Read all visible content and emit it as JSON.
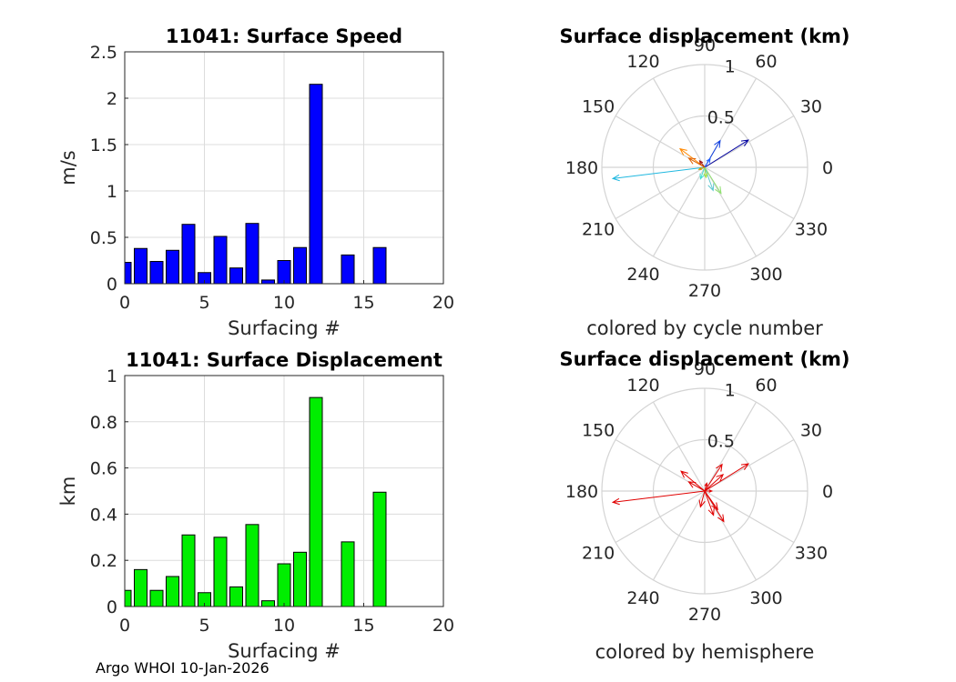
{
  "chart_data": [
    {
      "type": "bar",
      "title": "11041: Surface Speed",
      "xlabel": "Surfacing #",
      "ylabel": "m/s",
      "xlim": [
        0,
        20
      ],
      "ylim": [
        0,
        2.5
      ],
      "xticks": [
        "0",
        "5",
        "10",
        "15",
        "20"
      ],
      "yticks": [
        "0",
        "0.5",
        "1",
        "1.5",
        "2",
        "2.5"
      ],
      "grid": true,
      "bar_color": "#0000ff",
      "x": [
        0,
        1,
        2,
        3,
        4,
        5,
        6,
        7,
        8,
        9,
        10,
        11,
        12,
        14,
        16
      ],
      "values": [
        0.23,
        0.38,
        0.24,
        0.36,
        0.64,
        0.12,
        0.51,
        0.17,
        0.65,
        0.04,
        0.25,
        0.39,
        2.15,
        0.31,
        0.39
      ]
    },
    {
      "type": "bar",
      "title": "11041: Surface Displacement",
      "xlabel": "Surfacing #",
      "ylabel": "km",
      "xlim": [
        0,
        20
      ],
      "ylim": [
        0,
        1
      ],
      "xticks": [
        "0",
        "5",
        "10",
        "15",
        "20"
      ],
      "yticks": [
        "0",
        "0.2",
        "0.4",
        "0.6",
        "0.8",
        "1"
      ],
      "grid": true,
      "bar_color": "#00ee00",
      "x": [
        0,
        1,
        2,
        3,
        4,
        5,
        6,
        7,
        8,
        9,
        10,
        11,
        12,
        14,
        16
      ],
      "values": [
        0.07,
        0.16,
        0.07,
        0.13,
        0.31,
        0.06,
        0.3,
        0.085,
        0.355,
        0.025,
        0.185,
        0.235,
        0.905,
        0.28,
        0.495
      ]
    },
    {
      "type": "polar-vectors",
      "title": "Surface displacement (km)",
      "subtitle": "colored by cycle number",
      "rlim": [
        0,
        1
      ],
      "rticks": [
        "0.5",
        "1"
      ],
      "angle_ticks": [
        "90",
        "60",
        "30",
        "0",
        "330",
        "300",
        "270",
        "240",
        "210",
        "180",
        "150",
        "120"
      ],
      "vectors": [
        {
          "angle_deg": 32,
          "r": 0.5,
          "color": "#0000a0"
        },
        {
          "angle_deg": 60,
          "r": 0.3,
          "color": "#1040e0"
        },
        {
          "angle_deg": 58,
          "r": 0.1,
          "color": "#2060ff"
        },
        {
          "angle_deg": 187,
          "r": 0.9,
          "color": "#20b8e0"
        },
        {
          "angle_deg": 302,
          "r": 0.3,
          "color": "#90e070"
        },
        {
          "angle_deg": 290,
          "r": 0.24,
          "color": "#60c8d0"
        },
        {
          "angle_deg": 250,
          "r": 0.12,
          "color": "#40e0d0"
        },
        {
          "angle_deg": 143,
          "r": 0.3,
          "color": "#ff8800"
        },
        {
          "angle_deg": 150,
          "r": 0.18,
          "color": "#e06000"
        },
        {
          "angle_deg": 128,
          "r": 0.08,
          "color": "#a01010"
        },
        {
          "angle_deg": 200,
          "r": 0.06,
          "color": "#d0a000"
        },
        {
          "angle_deg": 278,
          "r": 0.1,
          "color": "#a0e040"
        }
      ]
    },
    {
      "type": "polar-vectors",
      "title": "Surface displacement (km)",
      "subtitle": "colored by hemisphere",
      "rlim": [
        0,
        1
      ],
      "rticks": [
        "0.5",
        "1"
      ],
      "angle_ticks": [
        "90",
        "60",
        "30",
        "0",
        "330",
        "300",
        "270",
        "240",
        "210",
        "180",
        "150",
        "120"
      ],
      "vectors": [
        {
          "angle_deg": 187,
          "r": 0.9,
          "color": "#e00000"
        },
        {
          "angle_deg": 32,
          "r": 0.5,
          "color": "#e00000"
        },
        {
          "angle_deg": 57,
          "r": 0.31,
          "color": "#e00000"
        },
        {
          "angle_deg": 42,
          "r": 0.24,
          "color": "#e00000"
        },
        {
          "angle_deg": 140,
          "r": 0.3,
          "color": "#e00000"
        },
        {
          "angle_deg": 150,
          "r": 0.18,
          "color": "#e00000"
        },
        {
          "angle_deg": 302,
          "r": 0.35,
          "color": "#e00000"
        },
        {
          "angle_deg": 305,
          "r": 0.22,
          "color": "#e00000"
        },
        {
          "angle_deg": 290,
          "r": 0.25,
          "color": "#e00000"
        },
        {
          "angle_deg": 255,
          "r": 0.16,
          "color": "#e00000"
        },
        {
          "angle_deg": 75,
          "r": 0.08,
          "color": "#e00000"
        },
        {
          "angle_deg": 0,
          "r": 0.07,
          "color": "#e00000"
        }
      ]
    }
  ],
  "footer": "Argo WHOI 10-Jan-2026"
}
